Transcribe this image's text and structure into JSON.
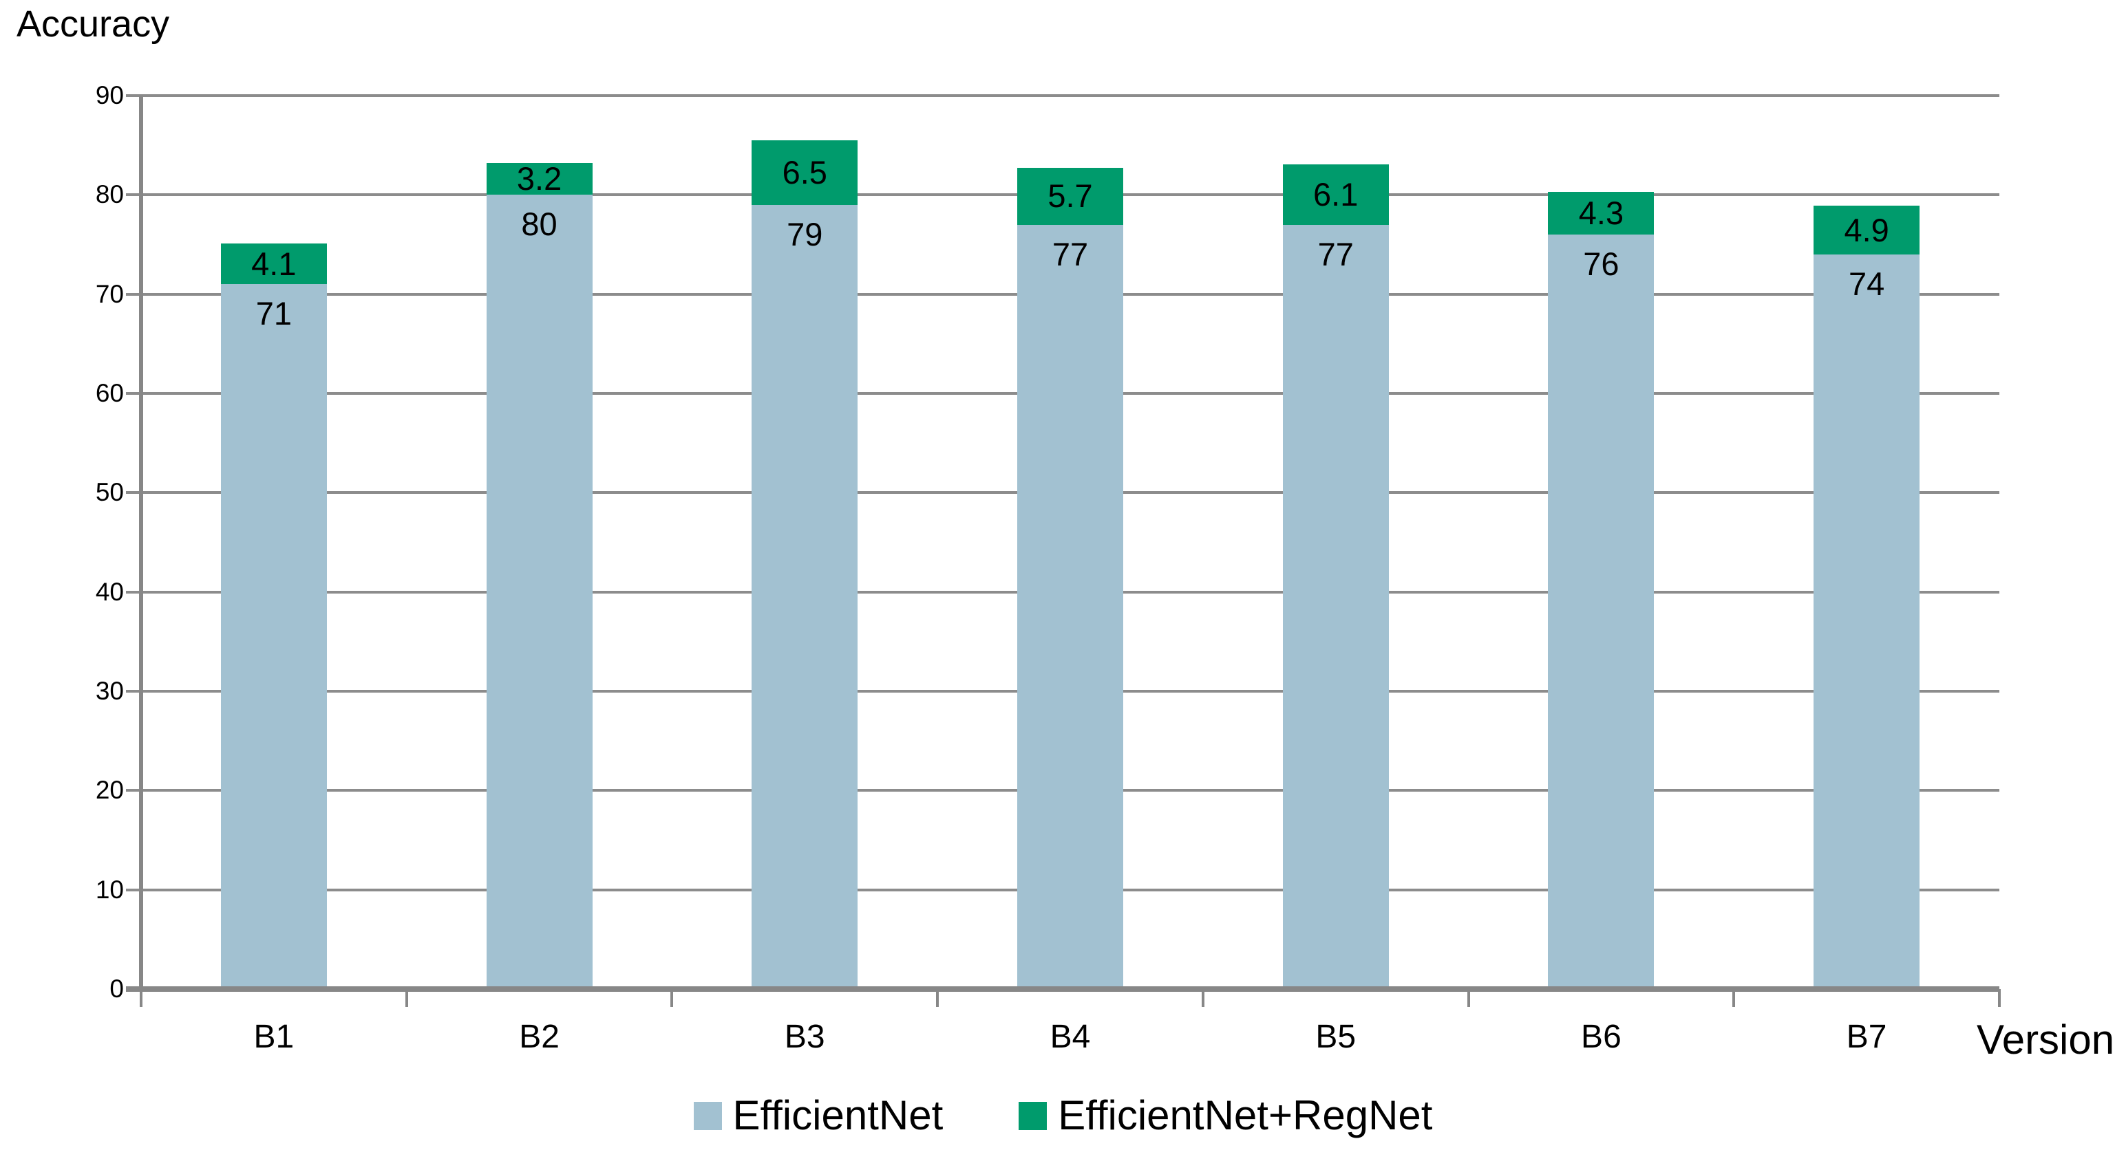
{
  "chart_data": {
    "type": "bar",
    "stacked": true,
    "title": "Accuracy",
    "xlabel": "Version",
    "ylabel": "Accuracy",
    "categories": [
      "B1",
      "B2",
      "B3",
      "B4",
      "B5",
      "B6",
      "B7"
    ],
    "series": [
      {
        "name": "EfficientNet",
        "color": "#a2c1d1",
        "values": [
          71,
          80,
          79,
          77,
          77,
          76,
          74
        ]
      },
      {
        "name": "EfficientNet+RegNet",
        "color": "#009b6c",
        "values": [
          4.1,
          3.2,
          6.5,
          5.7,
          6.1,
          4.3,
          4.9
        ]
      }
    ],
    "ylim": [
      0,
      90
    ],
    "yticks": [
      0,
      10,
      20,
      30,
      40,
      50,
      60,
      70,
      80,
      90
    ],
    "grid": true,
    "value_labels_shown": true,
    "legend_position": "bottom"
  },
  "colors": {
    "gridline": "#8c8c8c",
    "axis": "#878787",
    "text": "#000000",
    "background": "#ffffff"
  }
}
